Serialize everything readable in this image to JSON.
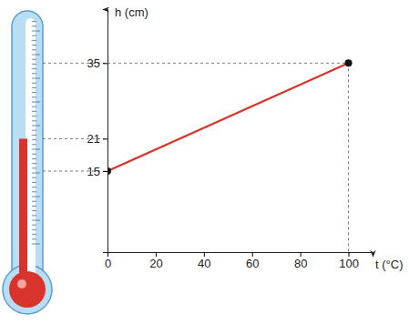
{
  "chart_data": {
    "type": "line",
    "x_label": "t (°C)",
    "y_label": "h (cm)",
    "x": [
      0,
      100
    ],
    "values": [
      15,
      35
    ],
    "color": "#d9342b",
    "marker": "circle",
    "xlim": [
      0,
      110
    ],
    "xticks": [
      0,
      20,
      40,
      60,
      80,
      100
    ],
    "ylim": [
      0,
      45
    ],
    "yticks": [
      15,
      21,
      35
    ],
    "grid": false
  }
}
